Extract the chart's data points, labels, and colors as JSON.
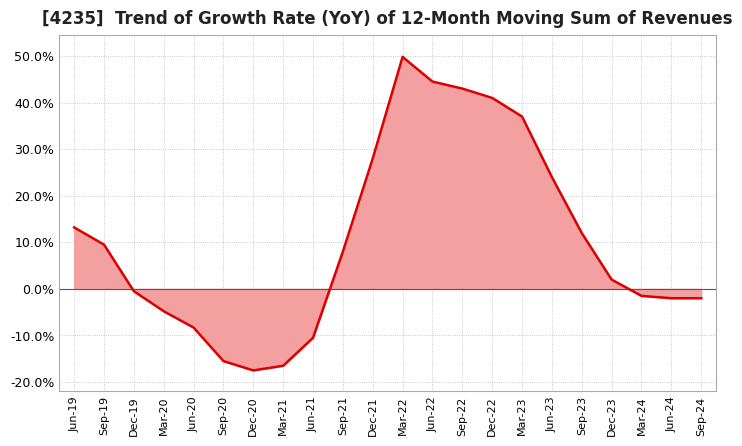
{
  "title": "[4235]  Trend of Growth Rate (YoY) of 12-Month Moving Sum of Revenues",
  "title_fontsize": 12,
  "background_color": "#ffffff",
  "grid_color": "#bbbbbb",
  "line_color": "#dd0000",
  "fill_color": "#f4a0a0",
  "ylim": [
    -0.22,
    0.545
  ],
  "yticks": [
    -0.2,
    -0.1,
    0.0,
    0.1,
    0.2,
    0.3,
    0.4,
    0.5
  ],
  "x_labels": [
    "Jun-19",
    "Sep-19",
    "Dec-19",
    "Mar-20",
    "Jun-20",
    "Sep-20",
    "Dec-20",
    "Mar-21",
    "Jun-21",
    "Sep-21",
    "Dec-21",
    "Mar-22",
    "Jun-22",
    "Sep-22",
    "Dec-22",
    "Mar-23",
    "Jun-23",
    "Sep-23",
    "Dec-23",
    "Mar-24",
    "Jun-24",
    "Sep-24"
  ],
  "values": [
    0.132,
    0.095,
    -0.005,
    -0.048,
    -0.083,
    -0.155,
    -0.175,
    -0.165,
    -0.105,
    0.08,
    0.28,
    0.498,
    0.445,
    0.43,
    0.41,
    0.37,
    0.24,
    0.12,
    0.02,
    -0.015,
    -0.02,
    -0.02
  ]
}
